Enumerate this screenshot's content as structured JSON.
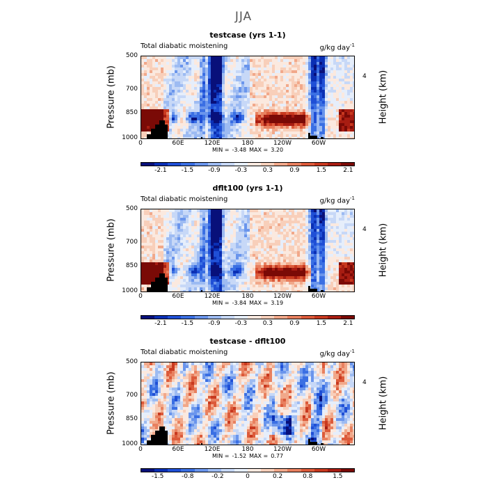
{
  "main_title": "JJA",
  "chart_data": [
    {
      "type": "heatmap",
      "title": "testcase (yrs 1-1)",
      "subtitle_left": "Total diabatic moistening",
      "units": "g/kg day",
      "units_exp": "-1",
      "ylabel": "Pressure (mb)",
      "ylabel_right": "Height (km)",
      "y_ticks": [
        "500",
        "700",
        "850",
        "1000"
      ],
      "y_right_ticks": [
        "4"
      ],
      "x_ticks": [
        "0",
        "60E",
        "120E",
        "180",
        "120W",
        "60W"
      ],
      "min_label": "MIN =",
      "min_value": "-3.48",
      "max_label": "MAX =",
      "max_value": "3.20",
      "colorbar_ticks": [
        "-2.1",
        "-1.5",
        "-0.9",
        "-0.3",
        "0.3",
        "0.9",
        "1.5",
        "2.1"
      ],
      "colorbar_levels": [
        -2.4,
        -2.1,
        -1.8,
        -1.5,
        -1.2,
        -0.9,
        -0.6,
        -0.3,
        0,
        0.3,
        0.6,
        0.9,
        1.2,
        1.5,
        1.8,
        2.1,
        2.4
      ],
      "xlim": [
        0,
        360
      ],
      "ylim": [
        1000,
        500
      ]
    },
    {
      "type": "heatmap",
      "title": "dflt100 (yrs 1-1)",
      "subtitle_left": "Total diabatic moistening",
      "units": "g/kg day",
      "units_exp": "-1",
      "ylabel": "Pressure (mb)",
      "ylabel_right": "Height (km)",
      "y_ticks": [
        "500",
        "700",
        "850",
        "1000"
      ],
      "y_right_ticks": [
        "4"
      ],
      "x_ticks": [
        "0",
        "60E",
        "120E",
        "180",
        "120W",
        "60W"
      ],
      "min_label": "MIN =",
      "min_value": "-3.84",
      "max_label": "MAX =",
      "max_value": "3.19",
      "colorbar_ticks": [
        "-2.1",
        "-1.5",
        "-0.9",
        "-0.3",
        "0.3",
        "0.9",
        "1.5",
        "2.1"
      ],
      "colorbar_levels": [
        -2.4,
        -2.1,
        -1.8,
        -1.5,
        -1.2,
        -0.9,
        -0.6,
        -0.3,
        0,
        0.3,
        0.6,
        0.9,
        1.2,
        1.5,
        1.8,
        2.1,
        2.4
      ],
      "xlim": [
        0,
        360
      ],
      "ylim": [
        1000,
        500
      ]
    },
    {
      "type": "heatmap",
      "title": "testcase - dflt100",
      "subtitle_left": "Total diabatic moistening",
      "units": "g/kg day",
      "units_exp": "-1",
      "ylabel": "Pressure (mb)",
      "ylabel_right": "Height (km)",
      "y_ticks": [
        "500",
        "700",
        "850",
        "1000"
      ],
      "y_right_ticks": [
        "4"
      ],
      "x_ticks": [
        "0",
        "60E",
        "120E",
        "180",
        "120W",
        "60W"
      ],
      "min_label": "MIN =",
      "min_value": "-1.52",
      "max_label": "MAX =",
      "max_value": "0.77",
      "colorbar_ticks": [
        "-1.5",
        "-0.8",
        "-0.2",
        "0",
        "0.2",
        "0.8",
        "1.5"
      ],
      "colorbar_levels": [
        -1.8,
        -1.5,
        -1.1,
        -0.8,
        -0.5,
        -0.2,
        -0.1,
        0,
        0.1,
        0.2,
        0.5,
        0.8,
        1.1,
        1.5,
        1.8
      ],
      "xlim": [
        0,
        360
      ],
      "ylim": [
        1000,
        500
      ]
    }
  ],
  "colors": {
    "scale": [
      "#08107a",
      "#0a2fb4",
      "#1f4fd6",
      "#3a6fe3",
      "#6a95ec",
      "#9dbbf2",
      "#c7d8f7",
      "#e6eefb",
      "#fbe9df",
      "#f8cfba",
      "#f1a88a",
      "#e8805f",
      "#dc5a3a",
      "#c8391f",
      "#a81d12",
      "#7a0a06"
    ],
    "topography": "#000000"
  }
}
